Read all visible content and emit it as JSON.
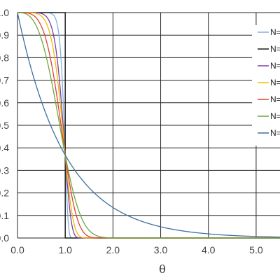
{
  "chart_data": {
    "type": "line",
    "title": "",
    "xlabel": "θ",
    "ylabel": "",
    "xlim": [
      0,
      5.5
    ],
    "ylim": [
      0,
      1.0
    ],
    "x_ticks": [
      0,
      1,
      2,
      3,
      4,
      5
    ],
    "x_tick_labels": [
      "0.0",
      "1.0",
      "2.0",
      "3.0",
      "4.0",
      "5.0"
    ],
    "y_ticks": [
      0,
      0.1,
      0.2,
      0.3,
      0.4,
      0.5,
      0.6,
      0.7,
      0.8,
      0.9,
      1.0
    ],
    "y_tick_labels": [
      "0.0",
      "0.1",
      "0.2",
      "0.3",
      "0.4",
      "0.5",
      "0.6",
      "0.7",
      "0.8",
      "0.9",
      "1.0"
    ],
    "grid": true,
    "legend_placement": "right",
    "series": [
      {
        "name": "N=",
        "color": "#7fb0e0",
        "shape": 16
      },
      {
        "name": "N=",
        "color": "#1a1a1a",
        "shape": "step"
      },
      {
        "name": "N=",
        "color": "#7b3fa0",
        "shape": 8
      },
      {
        "name": "N=",
        "color": "#f5b800",
        "shape": 6
      },
      {
        "name": "N=",
        "color": "#e0403a",
        "shape": 4
      },
      {
        "name": "N=",
        "color": "#6aaa3a",
        "shape": 3
      },
      {
        "name": "N=",
        "color": "#3f6f9f",
        "shape": 1
      }
    ]
  }
}
